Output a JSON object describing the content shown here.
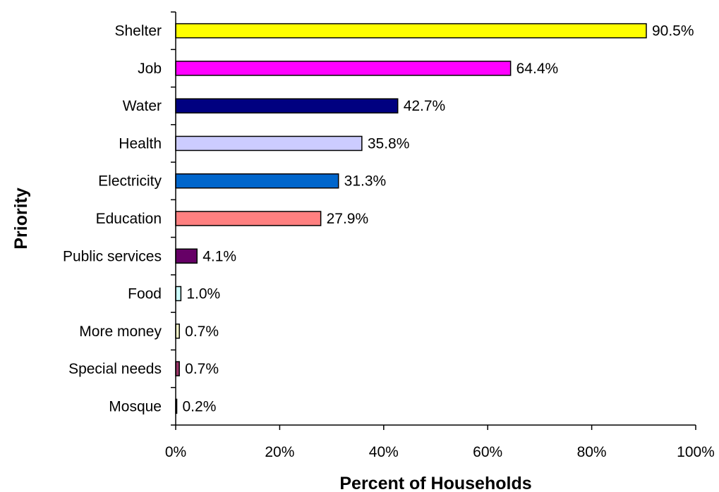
{
  "chart_data": {
    "type": "bar",
    "orientation": "horizontal",
    "categories": [
      "Shelter",
      "Job",
      "Water",
      "Health",
      "Electricity",
      "Education",
      "Public services",
      "Food",
      "More money",
      "Special needs",
      "Mosque"
    ],
    "values": [
      90.5,
      64.4,
      42.7,
      35.8,
      31.3,
      27.9,
      4.1,
      1.0,
      0.7,
      0.7,
      0.2
    ],
    "value_labels": [
      "90.5%",
      "64.4%",
      "42.7%",
      "35.8%",
      "31.3%",
      "27.9%",
      "4.1%",
      "1.0%",
      "0.7%",
      "0.7%",
      "0.2%"
    ],
    "bar_colors": [
      "#ffff00",
      "#ff00ff",
      "#000080",
      "#ccccff",
      "#0066cc",
      "#ff8080",
      "#660066",
      "#ccffff",
      "#ffffcc",
      "#993366",
      "#000080"
    ],
    "xlabel": "Percent of Households",
    "ylabel": "Priority",
    "xlim": [
      0,
      100
    ],
    "xticks": [
      0,
      20,
      40,
      60,
      80,
      100
    ],
    "xtick_labels": [
      "0%",
      "20%",
      "40%",
      "60%",
      "80%",
      "100%"
    ],
    "grid": false,
    "legend": false
  }
}
